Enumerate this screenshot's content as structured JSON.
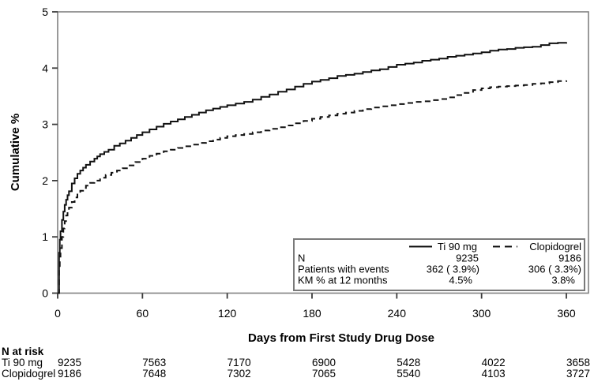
{
  "chart_data": {
    "type": "line",
    "title": "",
    "xlabel": "Days from First Study Drug Dose",
    "ylabel": "Cumulative %",
    "xlim": [
      0,
      360
    ],
    "ylim": [
      0,
      5
    ],
    "x_ticks": [
      0,
      60,
      120,
      180,
      240,
      300,
      360
    ],
    "y_ticks": [
      0,
      1,
      2,
      3,
      4,
      5
    ],
    "grid": false,
    "legend_position": "inside-bottom-right",
    "series": [
      {
        "name": "Ti 90 mg",
        "style": "solid",
        "points": [
          [
            0,
            0
          ],
          [
            1,
            0.72
          ],
          [
            1.5,
            0.95
          ],
          [
            2,
            1.1
          ],
          [
            3,
            1.3
          ],
          [
            4,
            1.45
          ],
          [
            5,
            1.57
          ],
          [
            6,
            1.66
          ],
          [
            7,
            1.74
          ],
          [
            8,
            1.81
          ],
          [
            10,
            1.95
          ],
          [
            12,
            2.04
          ],
          [
            14,
            2.12
          ],
          [
            16,
            2.18
          ],
          [
            18,
            2.23
          ],
          [
            20,
            2.28
          ],
          [
            23,
            2.34
          ],
          [
            26,
            2.39
          ],
          [
            28,
            2.43
          ],
          [
            30,
            2.47
          ],
          [
            33,
            2.51
          ],
          [
            36,
            2.55
          ],
          [
            40,
            2.62
          ],
          [
            44,
            2.66
          ],
          [
            48,
            2.71
          ],
          [
            52,
            2.76
          ],
          [
            56,
            2.81
          ],
          [
            60,
            2.86
          ],
          [
            65,
            2.91
          ],
          [
            70,
            2.96
          ],
          [
            75,
            3.01
          ],
          [
            80,
            3.05
          ],
          [
            85,
            3.09
          ],
          [
            90,
            3.13
          ],
          [
            95,
            3.17
          ],
          [
            100,
            3.21
          ],
          [
            105,
            3.25
          ],
          [
            110,
            3.28
          ],
          [
            115,
            3.31
          ],
          [
            120,
            3.34
          ],
          [
            126,
            3.37
          ],
          [
            132,
            3.4
          ],
          [
            138,
            3.44
          ],
          [
            144,
            3.49
          ],
          [
            150,
            3.53
          ],
          [
            156,
            3.58
          ],
          [
            162,
            3.62
          ],
          [
            168,
            3.67
          ],
          [
            174,
            3.72
          ],
          [
            180,
            3.76
          ],
          [
            186,
            3.79
          ],
          [
            192,
            3.82
          ],
          [
            198,
            3.86
          ],
          [
            204,
            3.88
          ],
          [
            210,
            3.9
          ],
          [
            216,
            3.93
          ],
          [
            222,
            3.96
          ],
          [
            228,
            3.98
          ],
          [
            234,
            4.02
          ],
          [
            240,
            4.06
          ],
          [
            246,
            4.08
          ],
          [
            252,
            4.1
          ],
          [
            258,
            4.13
          ],
          [
            264,
            4.15
          ],
          [
            270,
            4.17
          ],
          [
            276,
            4.2
          ],
          [
            282,
            4.22
          ],
          [
            288,
            4.24
          ],
          [
            294,
            4.26
          ],
          [
            300,
            4.28
          ],
          [
            306,
            4.31
          ],
          [
            312,
            4.33
          ],
          [
            318,
            4.34
          ],
          [
            324,
            4.36
          ],
          [
            330,
            4.37
          ],
          [
            336,
            4.38
          ],
          [
            342,
            4.41
          ],
          [
            348,
            4.44
          ],
          [
            354,
            4.45
          ],
          [
            360,
            4.46
          ]
        ]
      },
      {
        "name": "Clopidogrel",
        "style": "dashed",
        "points": [
          [
            0,
            0
          ],
          [
            1,
            0.48
          ],
          [
            1.5,
            0.65
          ],
          [
            2,
            0.8
          ],
          [
            3,
            1.0
          ],
          [
            4,
            1.15
          ],
          [
            5,
            1.28
          ],
          [
            6,
            1.38
          ],
          [
            7,
            1.46
          ],
          [
            8,
            1.52
          ],
          [
            10,
            1.62
          ],
          [
            12,
            1.7
          ],
          [
            14,
            1.77
          ],
          [
            16,
            1.82
          ],
          [
            18,
            1.87
          ],
          [
            20,
            1.91
          ],
          [
            23,
            1.96
          ],
          [
            26,
            2.0
          ],
          [
            30,
            2.05
          ],
          [
            34,
            2.1
          ],
          [
            38,
            2.14
          ],
          [
            42,
            2.18
          ],
          [
            46,
            2.22
          ],
          [
            50,
            2.27
          ],
          [
            55,
            2.33
          ],
          [
            60,
            2.39
          ],
          [
            65,
            2.44
          ],
          [
            70,
            2.48
          ],
          [
            75,
            2.52
          ],
          [
            80,
            2.55
          ],
          [
            85,
            2.58
          ],
          [
            90,
            2.61
          ],
          [
            95,
            2.64
          ],
          [
            100,
            2.67
          ],
          [
            105,
            2.7
          ],
          [
            110,
            2.73
          ],
          [
            115,
            2.76
          ],
          [
            120,
            2.79
          ],
          [
            126,
            2.81
          ],
          [
            132,
            2.83
          ],
          [
            138,
            2.86
          ],
          [
            144,
            2.89
          ],
          [
            150,
            2.92
          ],
          [
            156,
            2.95
          ],
          [
            162,
            2.98
          ],
          [
            168,
            3.02
          ],
          [
            174,
            3.06
          ],
          [
            180,
            3.1
          ],
          [
            186,
            3.13
          ],
          [
            192,
            3.16
          ],
          [
            198,
            3.19
          ],
          [
            204,
            3.21
          ],
          [
            210,
            3.24
          ],
          [
            216,
            3.27
          ],
          [
            222,
            3.3
          ],
          [
            228,
            3.32
          ],
          [
            234,
            3.34
          ],
          [
            240,
            3.36
          ],
          [
            246,
            3.38
          ],
          [
            252,
            3.4
          ],
          [
            258,
            3.41
          ],
          [
            264,
            3.43
          ],
          [
            270,
            3.45
          ],
          [
            276,
            3.48
          ],
          [
            282,
            3.52
          ],
          [
            288,
            3.56
          ],
          [
            294,
            3.61
          ],
          [
            300,
            3.64
          ],
          [
            306,
            3.66
          ],
          [
            312,
            3.67
          ],
          [
            318,
            3.68
          ],
          [
            324,
            3.69
          ],
          [
            330,
            3.7
          ],
          [
            336,
            3.72
          ],
          [
            342,
            3.73
          ],
          [
            348,
            3.75
          ],
          [
            354,
            3.77
          ],
          [
            360,
            3.78
          ]
        ]
      }
    ],
    "legend_table": {
      "rows": [
        {
          "label": "N",
          "values": [
            "9235",
            "9186"
          ]
        },
        {
          "label": "Patients with events",
          "values": [
            "362 ( 3.9%)",
            "306 ( 3.3%)"
          ]
        },
        {
          "label": "KM % at 12 months",
          "values": [
            "4.5%",
            "3.8%"
          ]
        }
      ]
    },
    "risk_table": {
      "title": "N at risk",
      "rows": [
        {
          "label": "Ti 90 mg",
          "values": [
            "9235",
            "7563",
            "7170",
            "6900",
            "5428",
            "4022",
            "3658"
          ]
        },
        {
          "label": "Clopidogrel",
          "values": [
            "9186",
            "7648",
            "7302",
            "7065",
            "5540",
            "4103",
            "3727"
          ]
        }
      ]
    }
  },
  "colors": {
    "background": "#ffffff",
    "curve": "#111111",
    "frame": "#808080",
    "tick": "#3a3a3a",
    "legend_border": "#7a7a7a",
    "text": "#000000"
  }
}
